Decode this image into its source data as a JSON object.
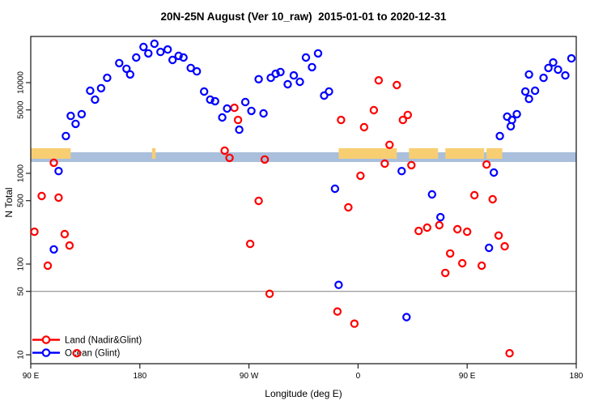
{
  "title": "20N-25N August (Ver 10_raw)  2015-01-01 to 2020-12-31",
  "axes": {
    "xlabel": "Longitude (deg E)",
    "ylabel": "N Total",
    "y_scale": "log",
    "x_unit_note": "degrees east continuing: 90E -> 180 -> 90W -> 0 -> 90E -> 180 (90 to 540)",
    "x_ticks": [
      {
        "lon": 90,
        "label": "90 E"
      },
      {
        "lon": 180,
        "label": "180"
      },
      {
        "lon": 270,
        "label": "90 W"
      },
      {
        "lon": 360,
        "label": "0"
      },
      {
        "lon": 450,
        "label": "90 E"
      },
      {
        "lon": 540,
        "label": "180"
      }
    ],
    "y_ticks": [
      {
        "v": 10,
        "label": "10"
      },
      {
        "v": 50,
        "label": "50"
      },
      {
        "v": 100,
        "label": "100"
      },
      {
        "v": 500,
        "label": "500"
      },
      {
        "v": 1000,
        "label": "1000"
      },
      {
        "v": 5000,
        "label": "5000"
      },
      {
        "v": 10000,
        "label": "10000"
      }
    ]
  },
  "colors": {
    "land_series": "#FF0000",
    "ocean_series": "#0000FF",
    "band_ocean": "#A9BFDC",
    "band_land": "#F8CE72",
    "gridline": "#808080",
    "frame": "#222222"
  },
  "legend": {
    "items": [
      {
        "label": "Land (Nadir&Glint)",
        "color": "#FF0000"
      },
      {
        "label": "Ocean (Glint)",
        "color": "#0000FF"
      }
    ]
  },
  "chart_data": {
    "type": "scatter",
    "title": "20N-25N August (Ver 10_raw)  2015-01-01 to 2020-12-31",
    "xlabel": "Longitude (deg E)",
    "ylabel": "N Total",
    "x_range": [
      90,
      540
    ],
    "y_range": [
      8,
      33000
    ],
    "reference_line_y": 50,
    "coast_band": {
      "ocean_extent": [
        90,
        540
      ],
      "land_segments": [
        [
          90,
          123
        ],
        [
          190,
          193
        ],
        [
          344,
          392
        ],
        [
          402,
          426
        ],
        [
          432,
          464
        ],
        [
          466,
          479
        ]
      ]
    },
    "series": [
      {
        "name": "Land (Nadir&Glint)",
        "color": "#FF0000",
        "points": [
          [
            109,
            1310
          ],
          [
            99,
            562
          ],
          [
            113,
            540
          ],
          [
            93,
            227
          ],
          [
            118,
            214
          ],
          [
            122,
            160
          ],
          [
            104,
            96
          ],
          [
            128,
            10.4
          ],
          [
            258,
            5280
          ],
          [
            261,
            3880
          ],
          [
            250,
            1780
          ],
          [
            254,
            1480
          ],
          [
            283,
            1420
          ],
          [
            278,
            497
          ],
          [
            271,
            167
          ],
          [
            287,
            47
          ],
          [
            343,
            30
          ],
          [
            357,
            22
          ],
          [
            346,
            3880
          ],
          [
            377,
            10600
          ],
          [
            392,
            9400
          ],
          [
            373,
            4970
          ],
          [
            401,
            4400
          ],
          [
            397,
            3880
          ],
          [
            365,
            3230
          ],
          [
            386,
            2060
          ],
          [
            382,
            1280
          ],
          [
            404,
            1230
          ],
          [
            362,
            940
          ],
          [
            352,
            422
          ],
          [
            456,
            574
          ],
          [
            471,
            518
          ],
          [
            427,
            268
          ],
          [
            417,
            252
          ],
          [
            410,
            232
          ],
          [
            442,
            242
          ],
          [
            450,
            227
          ],
          [
            476,
            206
          ],
          [
            481,
            157
          ],
          [
            436,
            131
          ],
          [
            446,
            102
          ],
          [
            462,
            96
          ],
          [
            432,
            80
          ],
          [
            466,
            1250
          ],
          [
            485,
            10.4
          ]
        ]
      },
      {
        "name": "Ocean (Glint)",
        "color": "#0000FF",
        "points": [
          [
            109,
            145
          ],
          [
            113,
            1060
          ],
          [
            119,
            2580
          ],
          [
            123,
            4300
          ],
          [
            127,
            3510
          ],
          [
            132,
            4490
          ],
          [
            139,
            8150
          ],
          [
            143,
            6490
          ],
          [
            148,
            8670
          ],
          [
            153,
            11300
          ],
          [
            163,
            16400
          ],
          [
            169,
            14200
          ],
          [
            172,
            12300
          ],
          [
            177,
            18900
          ],
          [
            183,
            24700
          ],
          [
            187,
            21000
          ],
          [
            192,
            26800
          ],
          [
            197,
            21800
          ],
          [
            203,
            23200
          ],
          [
            207,
            17800
          ],
          [
            212,
            19700
          ],
          [
            216,
            18900
          ],
          [
            222,
            14500
          ],
          [
            227,
            13300
          ],
          [
            233,
            7980
          ],
          [
            238,
            6490
          ],
          [
            242,
            6240
          ],
          [
            248,
            4130
          ],
          [
            252,
            5180
          ],
          [
            262,
            3030
          ],
          [
            267,
            6110
          ],
          [
            272,
            4880
          ],
          [
            278,
            10900
          ],
          [
            282,
            4580
          ],
          [
            288,
            11300
          ],
          [
            292,
            12500
          ],
          [
            296,
            13100
          ],
          [
            302,
            9590
          ],
          [
            307,
            12000
          ],
          [
            312,
            10200
          ],
          [
            317,
            18900
          ],
          [
            322,
            14800
          ],
          [
            327,
            21000
          ],
          [
            332,
            7200
          ],
          [
            336,
            7980
          ],
          [
            341,
            676
          ],
          [
            344,
            59
          ],
          [
            396,
            1060
          ],
          [
            421,
            586
          ],
          [
            400,
            26
          ],
          [
            428,
            329
          ],
          [
            468,
            151
          ],
          [
            472,
            1020
          ],
          [
            477,
            2580
          ],
          [
            483,
            4220
          ],
          [
            486,
            3300
          ],
          [
            487,
            3880
          ],
          [
            491,
            4490
          ],
          [
            498,
            7980
          ],
          [
            501,
            6620
          ],
          [
            506,
            8150
          ],
          [
            501,
            12300
          ],
          [
            513,
            11300
          ],
          [
            517,
            14500
          ],
          [
            521,
            16700
          ],
          [
            525,
            13900
          ],
          [
            531,
            12000
          ],
          [
            536,
            18500
          ]
        ]
      }
    ]
  }
}
